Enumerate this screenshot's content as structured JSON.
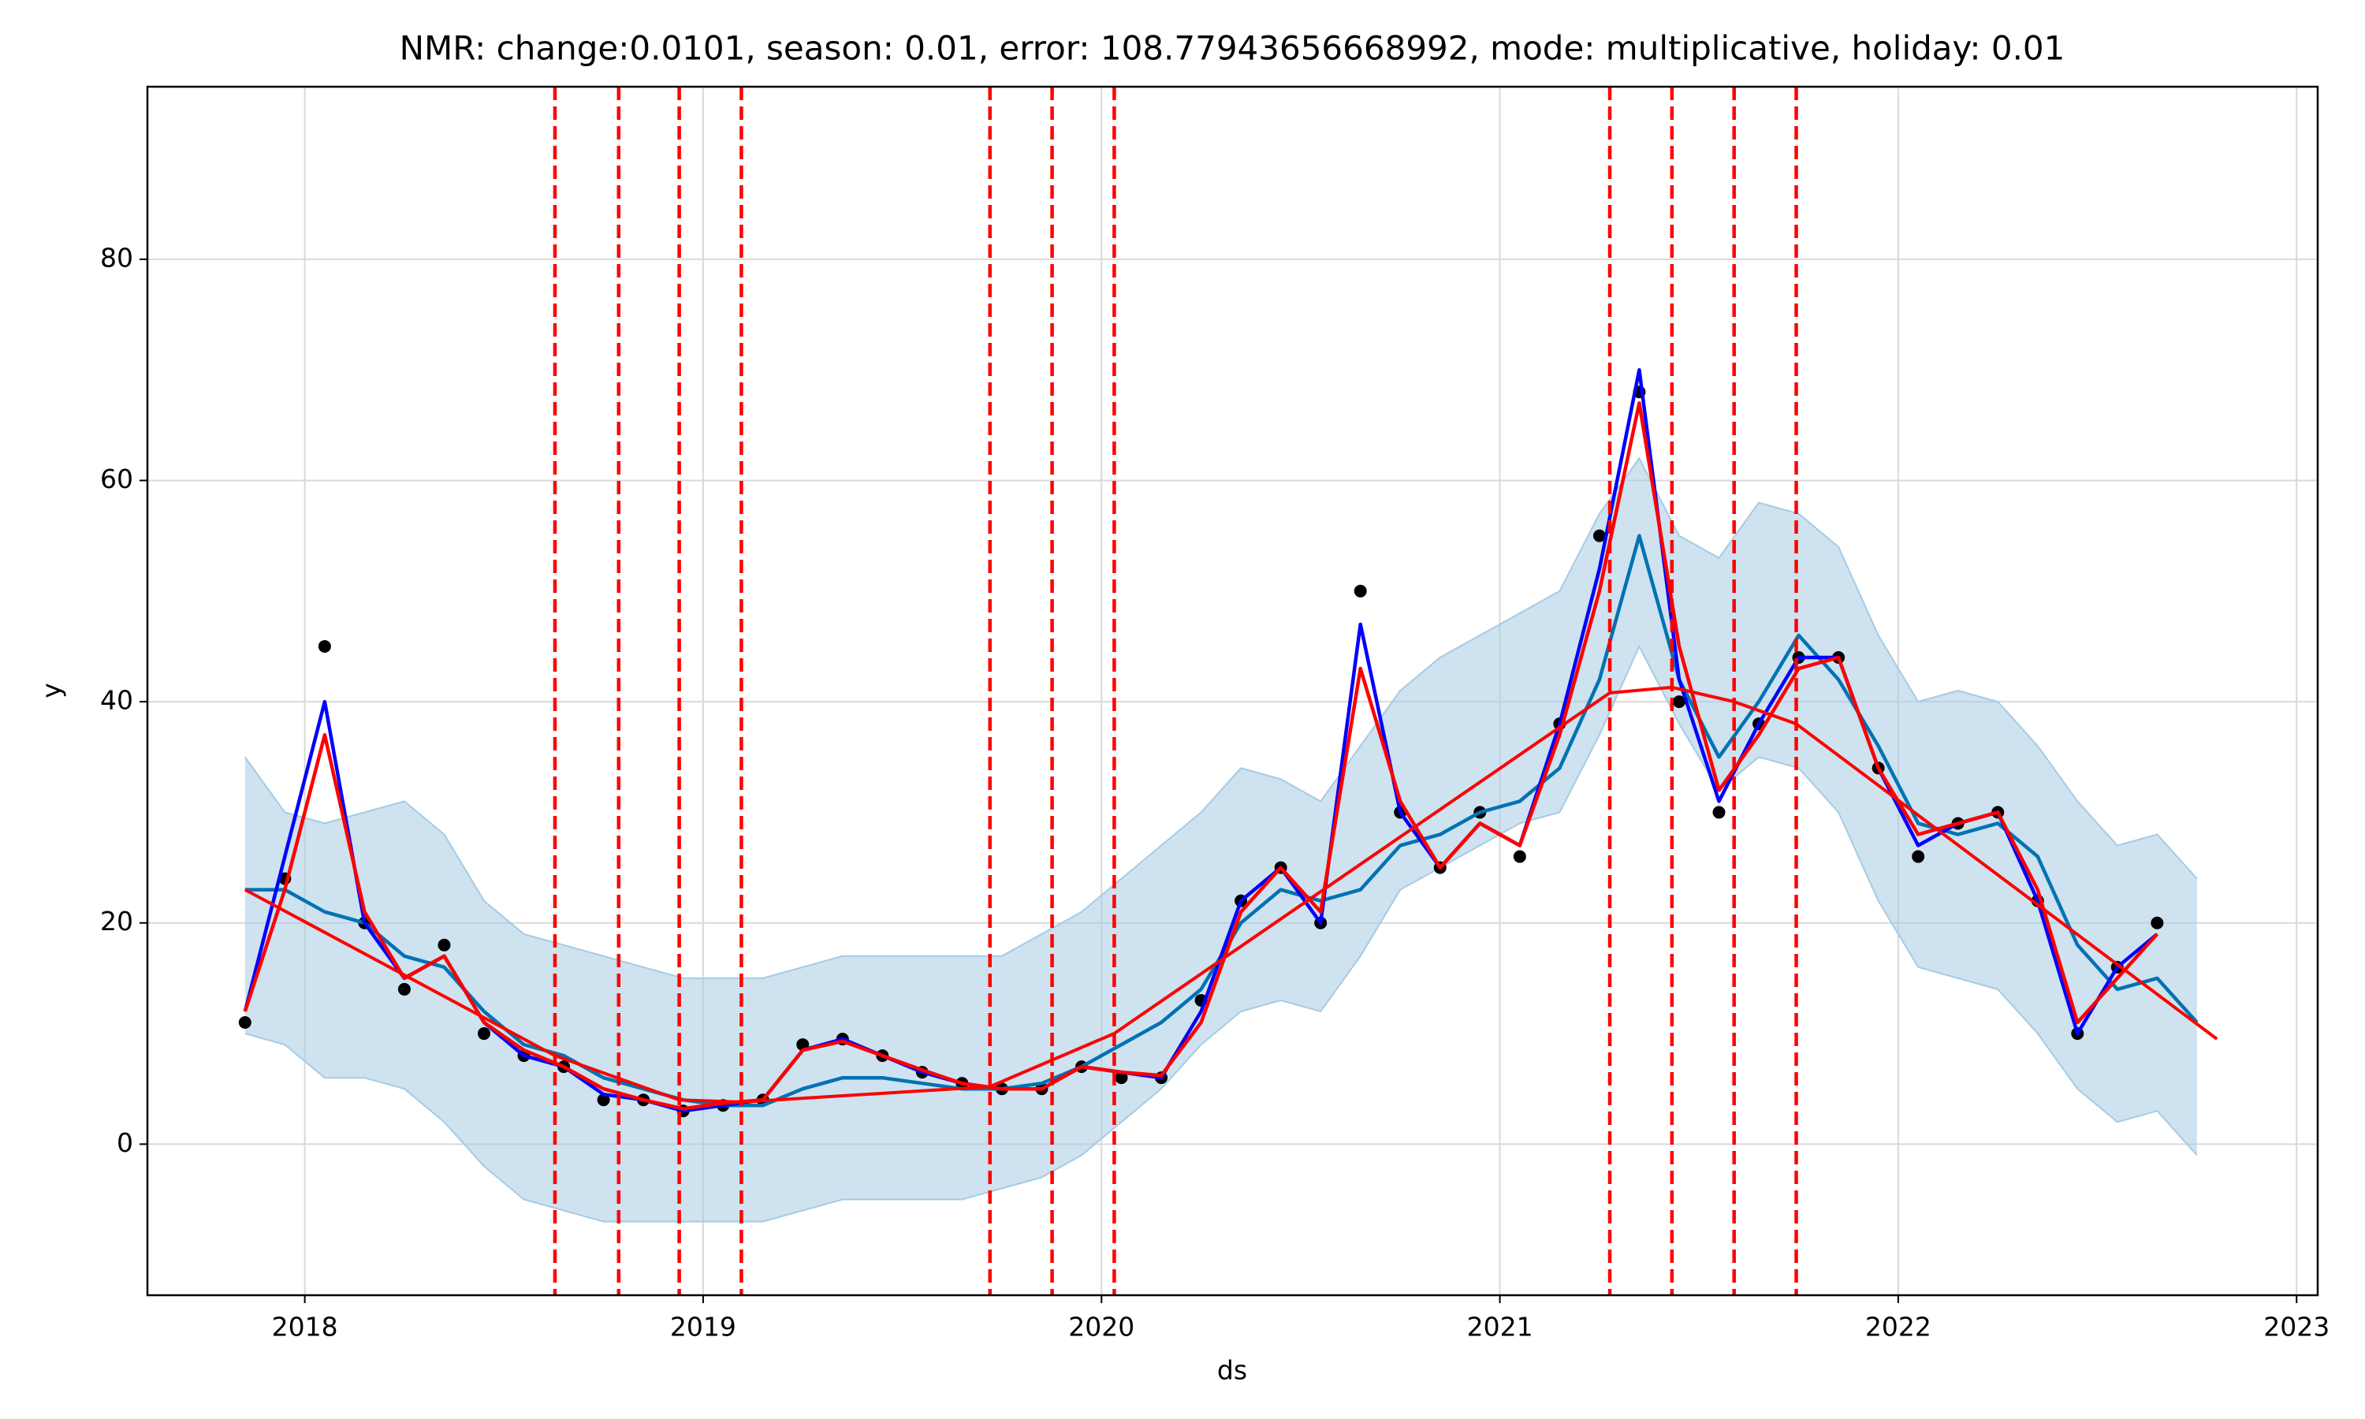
{
  "chart_data": {
    "type": "line",
    "title": "NMR: change:0.0101, season: 0.01, error: 108.77943656668992, mode: multiplicative, holiday: 0.01",
    "x_label": "ds",
    "y_label": "y",
    "xlim": [
      2017.605,
      2023.053
    ],
    "ylim": [
      -13.66,
      95.6
    ],
    "xticks": [
      2018,
      2019,
      2020,
      2021,
      2022,
      2023
    ],
    "yticks": [
      0,
      20,
      40,
      60,
      80
    ],
    "grid": true,
    "x": [
      2017.85,
      2017.95,
      2018.05,
      2018.15,
      2018.25,
      2018.35,
      2018.45,
      2018.55,
      2018.65,
      2018.75,
      2018.85,
      2018.95,
      2019.05,
      2019.15,
      2019.25,
      2019.35,
      2019.45,
      2019.55,
      2019.65,
      2019.75,
      2019.85,
      2019.95,
      2020.05,
      2020.15,
      2020.25,
      2020.35,
      2020.45,
      2020.55,
      2020.65,
      2020.75,
      2020.85,
      2020.95,
      2021.05,
      2021.15,
      2021.25,
      2021.35,
      2021.45,
      2021.55,
      2021.65,
      2021.75,
      2021.85,
      2021.95,
      2022.05,
      2022.15,
      2022.25,
      2022.35,
      2022.45,
      2022.55,
      2022.65,
      2022.75
    ],
    "band": {
      "color": "#a6cbe3",
      "upper": [
        35,
        30,
        29,
        30,
        31,
        28,
        22,
        19,
        18,
        17,
        16,
        15,
        15,
        15,
        16,
        17,
        17,
        17,
        17,
        17,
        19,
        21,
        24,
        27,
        30,
        34,
        33,
        31,
        36,
        41,
        44,
        46,
        48,
        50,
        57,
        62,
        55,
        53,
        58,
        57,
        54,
        46,
        40,
        41,
        40,
        36,
        31,
        27,
        28,
        24
      ],
      "lower": [
        10,
        9,
        6,
        6,
        5,
        2,
        -2,
        -5,
        -6,
        -7,
        -7,
        -7,
        -7,
        -7,
        -6,
        -5,
        -5,
        -5,
        -5,
        -4,
        -3,
        -1,
        2,
        5,
        9,
        12,
        13,
        12,
        17,
        23,
        25,
        27,
        29,
        30,
        37,
        45,
        38,
        32,
        35,
        34,
        30,
        22,
        16,
        15,
        14,
        10,
        5,
        2,
        3,
        -1
      ]
    },
    "series": [
      {
        "color": "#0072b2",
        "values": [
          23,
          23,
          21,
          20,
          17,
          16,
          12,
          9,
          8,
          6,
          5,
          4,
          3.5,
          3.5,
          5,
          6,
          6,
          5.5,
          5,
          5,
          5.5,
          7,
          9,
          11,
          14,
          20,
          23,
          22,
          23,
          27,
          28,
          30,
          31,
          34,
          42,
          55,
          42,
          35,
          40,
          46,
          42,
          36,
          29,
          28,
          29,
          26,
          18,
          14,
          15,
          11
        ]
      },
      {
        "color": "#0000ff",
        "values": [
          12,
          26,
          40,
          20,
          15,
          17,
          11,
          8,
          7,
          4.5,
          4,
          3,
          3.5,
          4,
          8.5,
          9.5,
          8,
          6.5,
          5.5,
          5,
          5,
          7,
          6.5,
          6,
          12,
          22,
          25,
          20,
          47,
          30,
          25,
          29,
          27,
          38,
          52,
          70,
          42,
          31,
          38,
          44,
          44,
          34,
          27,
          29,
          30,
          22,
          10,
          16,
          19,
          null
        ]
      },
      {
        "color": "#ff0000",
        "values": [
          12,
          23,
          37,
          21,
          15,
          17,
          11,
          8.5,
          7,
          5,
          4,
          3.2,
          3.7,
          4,
          8.5,
          9.3,
          8,
          6.7,
          5.5,
          5,
          5,
          7,
          6.5,
          6.2,
          11,
          21,
          25,
          21,
          43,
          31,
          25,
          29,
          27,
          37,
          50,
          67,
          45,
          32,
          37,
          43,
          44,
          34,
          28,
          29,
          30,
          23,
          11,
          15,
          19,
          null
        ]
      }
    ],
    "points": {
      "color": "#000000",
      "values": [
        11,
        24,
        45,
        20,
        14,
        18,
        10,
        8,
        7,
        4,
        4,
        3,
        3.5,
        4,
        9,
        9.5,
        8,
        6.5,
        5.5,
        5,
        5,
        7,
        6,
        6,
        13,
        22,
        25,
        20,
        50,
        30,
        25,
        30,
        26,
        38,
        55,
        68,
        40,
        30,
        38,
        44,
        44,
        34,
        26,
        29,
        30,
        22,
        10,
        16,
        20,
        null
      ]
    },
    "trend": {
      "color": "#ff0000",
      "x": [
        2017.85,
        2018.628,
        2018.94,
        2019.096,
        2019.72,
        2020.032,
        2021.276,
        2021.432,
        2021.588,
        2021.744,
        2022.8
      ],
      "values": [
        23,
        8,
        4,
        3.8,
        5.2,
        10,
        40.8,
        41.3,
        40,
        38,
        9.5
      ]
    },
    "changepoints": {
      "color": "#ff0000",
      "x": [
        2018.628,
        2018.788,
        2018.94,
        2019.096,
        2019.72,
        2019.876,
        2020.032,
        2021.276,
        2021.432,
        2021.588,
        2021.744
      ]
    }
  }
}
